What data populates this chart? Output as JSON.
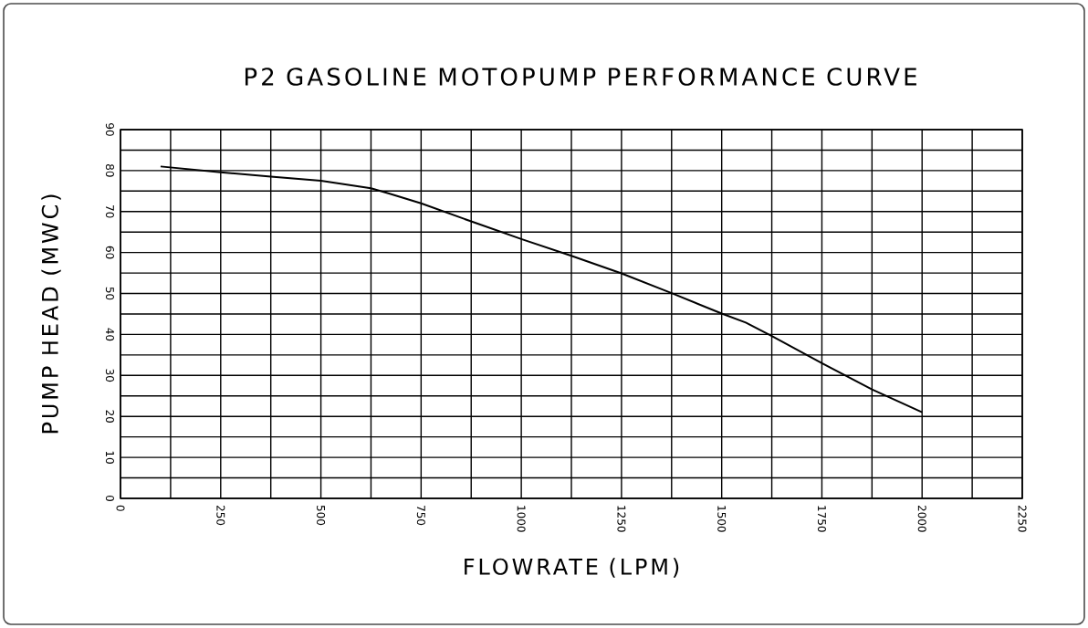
{
  "chart_data": {
    "type": "line",
    "title": "P2 GASOLINE MOTOPUMP PERFORMANCE CURVE",
    "xlabel": "FLOWRATE (LPM)",
    "ylabel": "PUMP HEAD (MWC)",
    "x": [
      100,
      250,
      375,
      500,
      625,
      670,
      750,
      875,
      1000,
      1125,
      1250,
      1375,
      1500,
      1560,
      1625,
      1750,
      1875,
      2000
    ],
    "series": [
      {
        "color": "#000000",
        "values": [
          81,
          79.6,
          78.5,
          77.5,
          75.7,
          74.4,
          72,
          67.6,
          63.3,
          59.2,
          54.9,
          50.1,
          45.1,
          42.9,
          39.6,
          33,
          26.6,
          21
        ]
      }
    ],
    "xlim": [
      0,
      2250
    ],
    "xticks": [
      0,
      250,
      500,
      750,
      1000,
      1250,
      1500,
      1750,
      2000,
      2250
    ],
    "ylim": [
      0,
      90
    ],
    "yticks": [
      0,
      10,
      20,
      30,
      40,
      50,
      60,
      70,
      80,
      90
    ],
    "grid": true,
    "marker": "none",
    "line_style": "solid"
  }
}
